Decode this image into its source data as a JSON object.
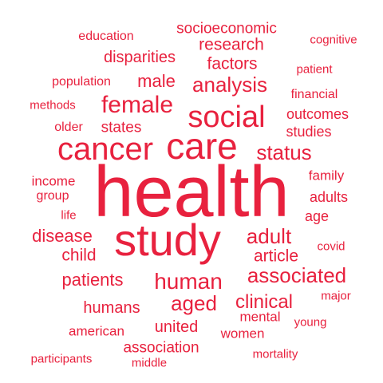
{
  "theme": {
    "word_color": "#e8213e",
    "background": "#ffffff"
  },
  "words": [
    {
      "text": "health",
      "weight": 100
    },
    {
      "text": "study",
      "weight": 68
    },
    {
      "text": "care",
      "weight": 54
    },
    {
      "text": "cancer",
      "weight": 48
    },
    {
      "text": "social",
      "weight": 44
    },
    {
      "text": "female",
      "weight": 36
    },
    {
      "text": "human",
      "weight": 33
    },
    {
      "text": "aged",
      "weight": 31
    },
    {
      "text": "associated",
      "weight": 31
    },
    {
      "text": "status",
      "weight": 31
    },
    {
      "text": "analysis",
      "weight": 30
    },
    {
      "text": "adult",
      "weight": 30
    },
    {
      "text": "clinical",
      "weight": 28
    },
    {
      "text": "male",
      "weight": 26
    },
    {
      "text": "patients",
      "weight": 26
    },
    {
      "text": "disease",
      "weight": 26
    },
    {
      "text": "article",
      "weight": 25
    },
    {
      "text": "child",
      "weight": 24
    },
    {
      "text": "factors",
      "weight": 24
    },
    {
      "text": "research",
      "weight": 24
    },
    {
      "text": "disparities",
      "weight": 24
    },
    {
      "text": "humans",
      "weight": 23
    },
    {
      "text": "united",
      "weight": 23
    },
    {
      "text": "association",
      "weight": 22
    },
    {
      "text": "states",
      "weight": 22
    },
    {
      "text": "socioeconomic",
      "weight": 22
    },
    {
      "text": "outcomes",
      "weight": 21
    },
    {
      "text": "studies",
      "weight": 21
    },
    {
      "text": "adults",
      "weight": 20
    },
    {
      "text": "age",
      "weight": 20
    },
    {
      "text": "income",
      "weight": 20
    },
    {
      "text": "women",
      "weight": 20
    },
    {
      "text": "mental",
      "weight": 19
    },
    {
      "text": "american",
      "weight": 19
    },
    {
      "text": "family",
      "weight": 19
    },
    {
      "text": "population",
      "weight": 18
    },
    {
      "text": "education",
      "weight": 18
    },
    {
      "text": "financial",
      "weight": 18
    },
    {
      "text": "older",
      "weight": 18
    },
    {
      "text": "group",
      "weight": 18
    },
    {
      "text": "cognitive",
      "weight": 17
    },
    {
      "text": "methods",
      "weight": 17
    },
    {
      "text": "patient",
      "weight": 17
    },
    {
      "text": "life",
      "weight": 17
    },
    {
      "text": "covid",
      "weight": 17
    },
    {
      "text": "major",
      "weight": 17
    },
    {
      "text": "young",
      "weight": 17
    },
    {
      "text": "mortality",
      "weight": 17
    },
    {
      "text": "participants",
      "weight": 17
    },
    {
      "text": "middle",
      "weight": 17
    }
  ]
}
